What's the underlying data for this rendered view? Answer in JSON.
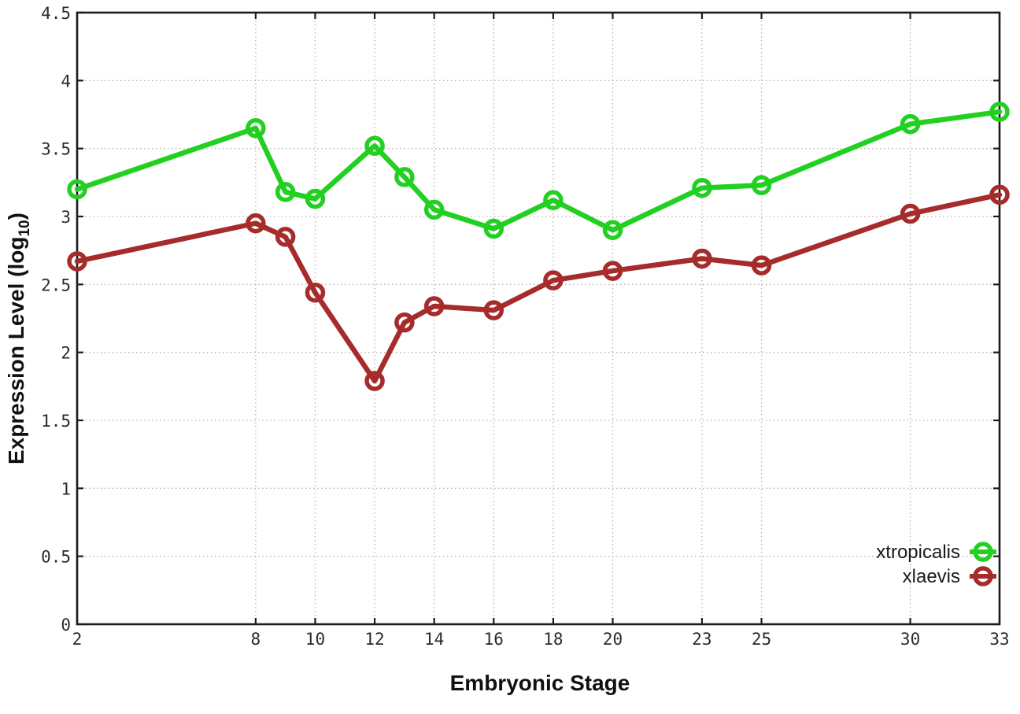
{
  "chart_data": {
    "type": "line",
    "title": "",
    "xlabel": "Embryonic Stage",
    "ylabel": {
      "pre": "Expression Level (log",
      "sub": "10",
      "post": ")"
    },
    "xlim": [
      2,
      33
    ],
    "ylim": [
      0,
      4.5
    ],
    "x_ticks": [
      2,
      8,
      10,
      12,
      14,
      16,
      18,
      20,
      23,
      25,
      30,
      33
    ],
    "y_ticks": [
      0,
      0.5,
      1,
      1.5,
      2,
      2.5,
      3,
      3.5,
      4,
      4.5
    ],
    "grid": true,
    "legend_position": "inside-bottom-right",
    "x": [
      2,
      8,
      9,
      10,
      12,
      13,
      14,
      16,
      18,
      20,
      23,
      25,
      30,
      33
    ],
    "series": [
      {
        "name": "xtropicalis",
        "color": "#22d022",
        "values": [
          3.2,
          3.65,
          3.18,
          3.13,
          3.52,
          3.29,
          3.05,
          2.91,
          3.12,
          2.9,
          3.21,
          3.23,
          3.68,
          3.77
        ]
      },
      {
        "name": "xlaevis",
        "color": "#a62b2b",
        "values": [
          2.67,
          2.95,
          2.85,
          2.44,
          1.79,
          2.22,
          2.34,
          2.31,
          2.53,
          2.6,
          2.69,
          2.64,
          3.02,
          3.16
        ]
      }
    ],
    "style": {
      "grid_color": "#b5b5b5",
      "axis_color": "#1c1c1c",
      "background": "#ffffff"
    }
  }
}
